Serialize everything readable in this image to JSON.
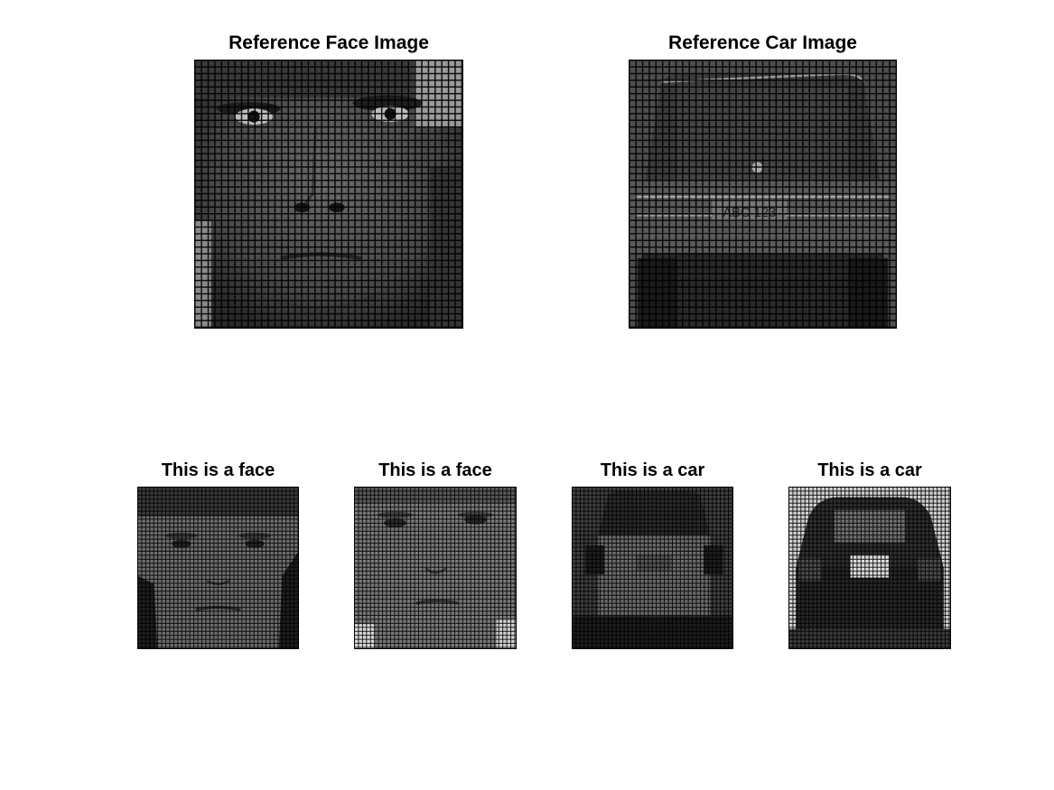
{
  "panels": {
    "reference_face": {
      "title": "Reference Face Image"
    },
    "reference_car": {
      "title": "Reference Car Image"
    },
    "sample_1": {
      "title": "This is a face"
    },
    "sample_2": {
      "title": "This is a face"
    },
    "sample_3": {
      "title": "This is a car"
    },
    "sample_4": {
      "title": "This is a car"
    }
  }
}
